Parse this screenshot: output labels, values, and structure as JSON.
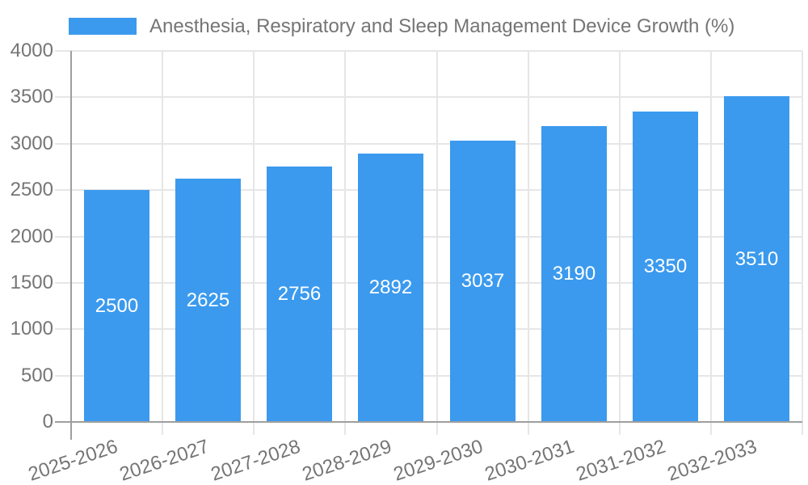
{
  "chart_data": {
    "type": "bar",
    "title": "Anesthesia, Respiratory and Sleep Management Device Growth (%)",
    "categories": [
      "2025-2026",
      "2026-2027",
      "2027-2028",
      "2028-2029",
      "2029-2030",
      "2030-2031",
      "2031-2032",
      "2032-2033"
    ],
    "values": [
      2500,
      2625,
      2756,
      2892,
      3037,
      3190,
      3350,
      3510
    ],
    "xlabel": "",
    "ylabel": "",
    "ylim": [
      0,
      4000
    ],
    "yticks": [
      0,
      500,
      1000,
      1500,
      2000,
      2500,
      3000,
      3500,
      4000
    ],
    "grid": true,
    "legend_position": "top-left",
    "bar_value_labels": "inside-center"
  },
  "colors": {
    "bar": "#3B9AEE",
    "grid": "#E6E6E6",
    "axis": "#9E9E9E",
    "text": "#757575",
    "barlabel": "#FFFFFF",
    "background": "#FFFFFF"
  }
}
